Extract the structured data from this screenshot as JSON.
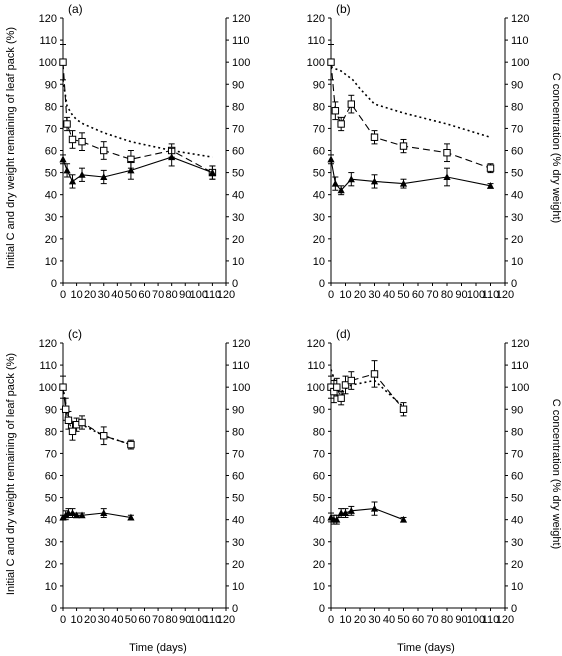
{
  "figure": {
    "ylabel_left": "Initial C and dry weight remaining of leaf pack (%)",
    "ylabel_right": "C concentration (% dry weight)",
    "xlabel": "Time (days)"
  },
  "chart_data": [
    {
      "type": "line",
      "panel": "(a)",
      "xlim": [
        0,
        120
      ],
      "ylim": [
        0,
        120
      ],
      "xticks": [
        0,
        10,
        20,
        30,
        40,
        50,
        60,
        70,
        80,
        90,
        100,
        110,
        120
      ],
      "yticks": [
        0,
        10,
        20,
        30,
        40,
        50,
        60,
        70,
        80,
        90,
        100,
        110,
        120
      ],
      "y2ticks": [
        0,
        10,
        20,
        30,
        40,
        50,
        60,
        70,
        80,
        90,
        100,
        110,
        120
      ],
      "grid": false,
      "series": [
        {
          "style": "dotted",
          "x": [
            0,
            3,
            7,
            10,
            15,
            30,
            50,
            80,
            110
          ],
          "y": [
            92,
            80,
            76,
            74,
            72,
            68,
            64,
            60,
            57
          ]
        },
        {
          "style": "dashed-open-square",
          "x": [
            0,
            3,
            7,
            14,
            30,
            50,
            80,
            110
          ],
          "y": [
            100,
            72,
            65,
            64,
            60,
            56,
            60,
            50
          ],
          "err": [
            8,
            3,
            4,
            4,
            4,
            4,
            3,
            3
          ]
        },
        {
          "style": "solid-filled-triangle",
          "x": [
            0,
            3,
            7,
            14,
            30,
            50,
            80,
            110
          ],
          "y": [
            56,
            51,
            46,
            49,
            48,
            51,
            57,
            50
          ],
          "err": [
            2,
            3,
            3,
            3,
            3,
            4,
            4,
            3
          ]
        }
      ]
    },
    {
      "type": "line",
      "panel": "(b)",
      "xlim": [
        0,
        120
      ],
      "ylim": [
        0,
        120
      ],
      "xticks": [
        0,
        10,
        20,
        30,
        40,
        50,
        60,
        70,
        80,
        90,
        100,
        110,
        120
      ],
      "yticks": [
        0,
        10,
        20,
        30,
        40,
        50,
        60,
        70,
        80,
        90,
        100,
        110,
        120
      ],
      "y2ticks": [
        0,
        10,
        20,
        30,
        40,
        50,
        60,
        70,
        80,
        90,
        100,
        110,
        120
      ],
      "grid": false,
      "series": [
        {
          "style": "dotted",
          "x": [
            0,
            3,
            7,
            15,
            20,
            30,
            50,
            80,
            110
          ],
          "y": [
            98,
            97,
            96,
            92,
            88,
            81,
            77,
            72,
            66
          ]
        },
        {
          "style": "dashed-open-square",
          "x": [
            0,
            3,
            7,
            14,
            30,
            50,
            80,
            110
          ],
          "y": [
            100,
            78,
            72,
            81,
            66,
            62,
            59,
            52
          ],
          "err": [
            8,
            4,
            3,
            4,
            3,
            3,
            4,
            2
          ]
        },
        {
          "style": "solid-filled-triangle",
          "x": [
            0,
            3,
            7,
            14,
            30,
            50,
            80,
            110
          ],
          "y": [
            56,
            45,
            42,
            47,
            46,
            45,
            48,
            44
          ],
          "err": [
            2,
            3,
            2,
            3,
            3,
            2,
            4,
            1
          ]
        }
      ]
    },
    {
      "type": "line",
      "panel": "(c)",
      "xlim": [
        0,
        120
      ],
      "ylim": [
        0,
        120
      ],
      "xticks": [
        0,
        10,
        20,
        30,
        40,
        50,
        60,
        70,
        80,
        90,
        100,
        110,
        120
      ],
      "yticks": [
        0,
        10,
        20,
        30,
        40,
        50,
        60,
        70,
        80,
        90,
        100,
        110,
        120
      ],
      "y2ticks": [
        0,
        10,
        20,
        30,
        40,
        50,
        60,
        70,
        80,
        90,
        100,
        110,
        120
      ],
      "grid": false,
      "series": [
        {
          "style": "dotted",
          "x": [
            0,
            3,
            7,
            14,
            30,
            50
          ],
          "y": [
            100,
            88,
            84,
            83,
            78,
            74
          ]
        },
        {
          "style": "dashed-open-square",
          "x": [
            0,
            2,
            4,
            7,
            10,
            14,
            30,
            50
          ],
          "y": [
            100,
            90,
            85,
            80,
            83,
            84,
            78,
            74
          ],
          "err": [
            5,
            5,
            4,
            4,
            3,
            3,
            4,
            2
          ]
        },
        {
          "style": "solid-filled-triangle",
          "x": [
            0,
            2,
            4,
            7,
            10,
            14,
            30,
            50
          ],
          "y": [
            41,
            42,
            43,
            43,
            42,
            42,
            43,
            41
          ],
          "err": [
            1,
            2,
            2,
            2,
            1,
            1,
            2,
            1
          ]
        }
      ]
    },
    {
      "type": "line",
      "panel": "(d)",
      "xlim": [
        0,
        120
      ],
      "ylim": [
        0,
        120
      ],
      "xticks": [
        0,
        10,
        20,
        30,
        40,
        50,
        60,
        70,
        80,
        90,
        100,
        110,
        120
      ],
      "yticks": [
        0,
        10,
        20,
        30,
        40,
        50,
        60,
        70,
        80,
        90,
        100,
        110,
        120
      ],
      "y2ticks": [
        0,
        10,
        20,
        30,
        40,
        50,
        60,
        70,
        80,
        90,
        100,
        110,
        120
      ],
      "grid": false,
      "series": [
        {
          "style": "dotted",
          "x": [
            0,
            3,
            7,
            14,
            30,
            50
          ],
          "y": [
            108,
            102,
            98,
            101,
            103,
            91
          ]
        },
        {
          "style": "dashed-open-square",
          "x": [
            0,
            2,
            4,
            7,
            10,
            14,
            30,
            50
          ],
          "y": [
            100,
            98,
            100,
            95,
            101,
            103,
            106,
            90
          ],
          "err": [
            5,
            5,
            4,
            3,
            4,
            4,
            6,
            3
          ]
        },
        {
          "style": "solid-filled-triangle",
          "x": [
            0,
            2,
            4,
            7,
            10,
            14,
            30,
            50
          ],
          "y": [
            41,
            40,
            40,
            43,
            43,
            44,
            45,
            40
          ],
          "err": [
            2,
            2,
            2,
            2,
            2,
            2,
            3,
            1
          ]
        }
      ]
    }
  ]
}
